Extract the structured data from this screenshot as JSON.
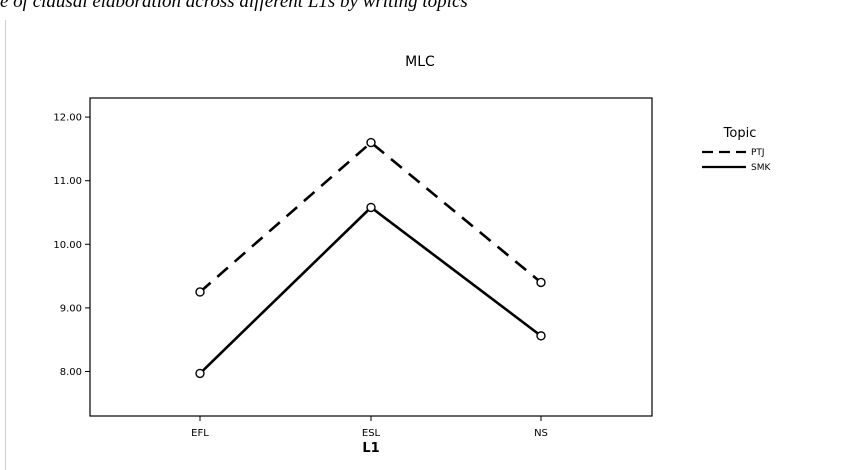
{
  "caption": "e of clausal elaboration across different L1s by writing topics",
  "chart_data": {
    "type": "line",
    "title": "MLC",
    "xlabel": "L1",
    "ylabel": "",
    "categories": [
      "EFL",
      "ESL",
      "NS"
    ],
    "ylim": [
      7.3,
      12.3
    ],
    "yticks": [
      "8.00",
      "9.00",
      "10.00",
      "11.00",
      "12.00"
    ],
    "ytick_values": [
      8,
      9,
      10,
      11,
      12
    ],
    "legend_title": "Topic",
    "legend_position": "top-right",
    "grid": false,
    "series": [
      {
        "name": "PTJ",
        "style": "dashed",
        "values": [
          9.25,
          11.6,
          9.4
        ]
      },
      {
        "name": "SMK",
        "style": "solid",
        "values": [
          7.97,
          10.58,
          8.56
        ]
      }
    ]
  }
}
